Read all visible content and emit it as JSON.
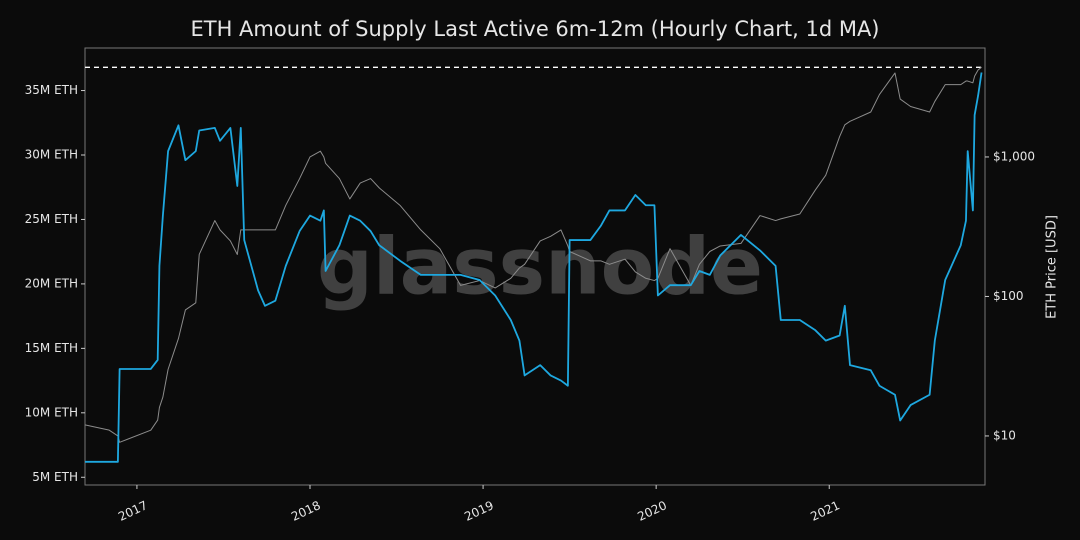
{
  "chart_data": {
    "type": "line",
    "title": "ETH Amount of Supply Last Active 6m-12m (Hourly Chart, 1d MA)",
    "y2label": "ETH Price [USD]",
    "watermark": "glassnode",
    "x": [
      2016.7,
      2016.84,
      2016.89,
      2016.9,
      2017.08,
      2017.12,
      2017.13,
      2017.15,
      2017.18,
      2017.24,
      2017.28,
      2017.34,
      2017.36,
      2017.45,
      2017.48,
      2017.54,
      2017.58,
      2017.6,
      2017.62,
      2017.7,
      2017.74,
      2017.8,
      2017.86,
      2017.94,
      2018.0,
      2018.06,
      2018.08,
      2018.09,
      2018.17,
      2018.23,
      2018.29,
      2018.35,
      2018.4,
      2018.52,
      2018.64,
      2018.75,
      2018.87,
      2018.98,
      2019.07,
      2019.16,
      2019.21,
      2019.24,
      2019.33,
      2019.39,
      2019.45,
      2019.49,
      2019.5,
      2019.62,
      2019.68,
      2019.73,
      2019.82,
      2019.88,
      2019.94,
      2019.99,
      2020.01,
      2020.08,
      2020.2,
      2020.25,
      2020.31,
      2020.37,
      2020.49,
      2020.6,
      2020.69,
      2020.72,
      2020.83,
      2020.92,
      2020.98,
      2021.06,
      2021.09,
      2021.12,
      2021.24,
      2021.29,
      2021.38,
      2021.41,
      2021.47,
      2021.58,
      2021.61,
      2021.67,
      2021.76,
      2021.79,
      2021.8,
      2021.83,
      2021.84,
      2021.86,
      2021.88
    ],
    "series": [
      {
        "color": "#1ea8e0",
        "values": [
          6.2,
          6.2,
          6.2,
          13.4,
          13.4,
          14.1,
          21.4,
          25.3,
          30.3,
          32.3,
          29.6,
          30.3,
          31.9,
          32.1,
          31.1,
          32.1,
          27.6,
          32.1,
          23.4,
          19.5,
          18.3,
          18.7,
          21.4,
          24.1,
          25.3,
          24.9,
          25.7,
          21.0,
          23.0,
          25.3,
          24.9,
          24.1,
          23.0,
          21.8,
          20.7,
          20.7,
          20.7,
          20.3,
          19.1,
          17.2,
          15.6,
          12.9,
          13.7,
          12.9,
          12.5,
          12.1,
          23.4,
          23.4,
          24.5,
          25.7,
          25.7,
          26.9,
          26.1,
          26.1,
          19.1,
          19.9,
          19.9,
          21.0,
          20.7,
          22.2,
          23.8,
          22.6,
          21.4,
          17.2,
          17.2,
          16.4,
          15.6,
          16.0,
          18.3,
          13.7,
          13.3,
          12.1,
          11.4,
          9.4,
          10.6,
          11.4,
          15.6,
          20.3,
          23.0,
          24.9,
          30.3,
          25.7,
          33.1,
          34.6,
          36.4
        ]
      },
      {
        "color": "#8c8c8c",
        "axis": "y2",
        "values": [
          12,
          11,
          10,
          9,
          11,
          13,
          16,
          19,
          30,
          50,
          80,
          90,
          200,
          350,
          300,
          250,
          200,
          300,
          300,
          300,
          300,
          300,
          450,
          700,
          1000,
          1100,
          1000,
          900,
          700,
          500,
          650,
          700,
          600,
          450,
          300,
          220,
          120,
          130,
          115,
          135,
          160,
          170,
          250,
          270,
          300,
          230,
          210,
          180,
          180,
          170,
          185,
          150,
          135,
          130,
          135,
          220,
          120,
          170,
          210,
          230,
          240,
          380,
          350,
          360,
          390,
          580,
          740,
          1400,
          1700,
          1800,
          2100,
          2800,
          4000,
          2600,
          2300,
          2100,
          2500,
          3300,
          3300,
          3500,
          3500,
          3400,
          3800,
          4200,
          4400
        ]
      }
    ],
    "reference_line": 36.8,
    "xlim": [
      2016.7,
      2021.9
    ],
    "xticks": [
      2017,
      2018,
      2019,
      2020,
      2021
    ],
    "ylim": [
      4.4,
      38.3
    ],
    "yticks": [
      {
        "value": 5,
        "label": "5M ETH"
      },
      {
        "value": 10,
        "label": "10M ETH"
      },
      {
        "value": 15,
        "label": "15M ETH"
      },
      {
        "value": 20,
        "label": "20M ETH"
      },
      {
        "value": 25,
        "label": "25M ETH"
      },
      {
        "value": 30,
        "label": "30M ETH"
      },
      {
        "value": 35,
        "label": "35M ETH"
      }
    ],
    "y2lim": [
      4.45,
      6040
    ],
    "y2scale": "log",
    "y2ticks": [
      {
        "value": 10,
        "label": "$10"
      },
      {
        "value": 100,
        "label": "$100"
      },
      {
        "value": 1000,
        "label": "$1,000"
      }
    ]
  }
}
